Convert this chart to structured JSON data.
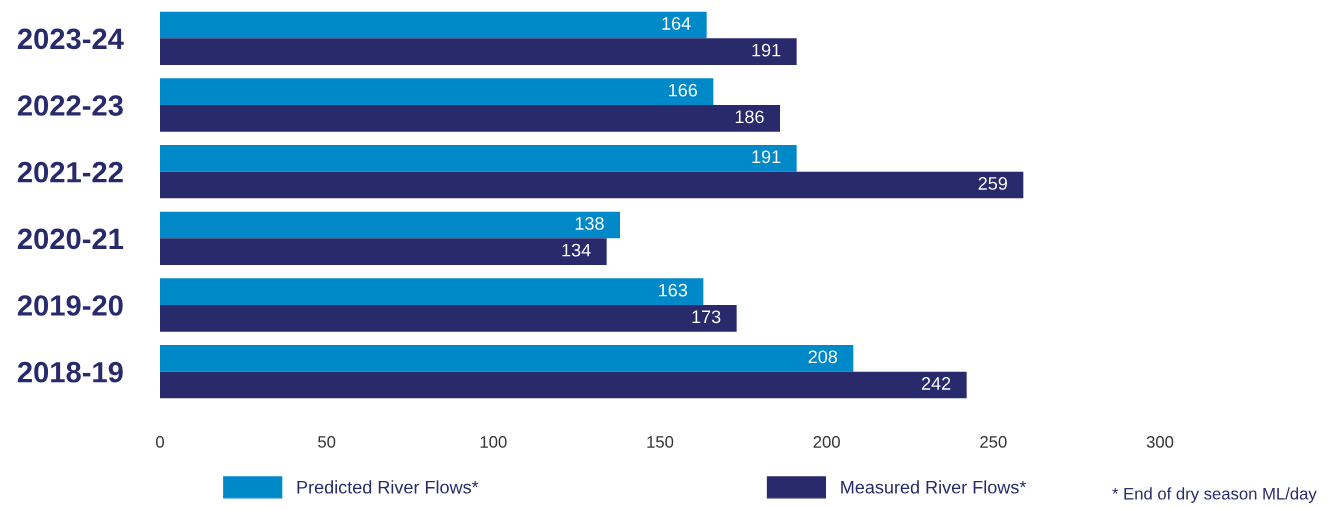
{
  "chart_data": {
    "type": "bar",
    "orientation": "horizontal",
    "categories": [
      "2023-24",
      "2022-23",
      "2021-22",
      "2020-21",
      "2019-20",
      "2018-19"
    ],
    "series": [
      {
        "name": "Predicted River Flows*",
        "color": "#0089c9",
        "values": [
          164,
          166,
          191,
          138,
          163,
          208
        ]
      },
      {
        "name": "Measured River Flows*",
        "color": "#282a6b",
        "values": [
          191,
          186,
          259,
          134,
          173,
          242
        ]
      }
    ],
    "xlim": [
      0,
      300
    ],
    "xticks": [
      0,
      50,
      100,
      150,
      200,
      250,
      300
    ],
    "data_labels": true,
    "grid": false,
    "legend": "bottom",
    "annotations": [
      "* End of dry season ML/day"
    ]
  }
}
